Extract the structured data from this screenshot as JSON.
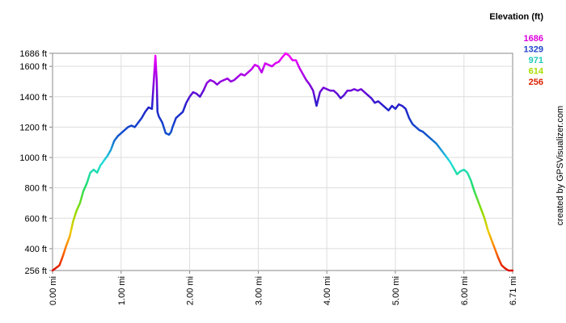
{
  "chart_data": {
    "type": "line",
    "title": "",
    "xlabel": "",
    "ylabel": "",
    "xlim": [
      0,
      6.71
    ],
    "ylim": [
      256,
      1686
    ],
    "grid": true,
    "x_ticks": [
      {
        "value": 0,
        "label": "0.00 mi"
      },
      {
        "value": 1,
        "label": "1.00 mi"
      },
      {
        "value": 2,
        "label": "2.00 mi"
      },
      {
        "value": 3,
        "label": "3.00 mi"
      },
      {
        "value": 4,
        "label": "4.00 mi"
      },
      {
        "value": 5,
        "label": "5.00 mi"
      },
      {
        "value": 6,
        "label": "6.00 mi"
      },
      {
        "value": 6.71,
        "label": "6.71 mi"
      }
    ],
    "y_ticks": [
      {
        "value": 256,
        "label": "256 ft"
      },
      {
        "value": 400,
        "label": "400 ft"
      },
      {
        "value": 600,
        "label": "600 ft"
      },
      {
        "value": 800,
        "label": "800 ft"
      },
      {
        "value": 1000,
        "label": "1000 ft"
      },
      {
        "value": 1200,
        "label": "1200 ft"
      },
      {
        "value": 1400,
        "label": "1400 ft"
      },
      {
        "value": 1600,
        "label": "1600 ft"
      },
      {
        "value": 1686,
        "label": "1686 ft"
      }
    ],
    "legend": {
      "title": "Elevation (ft)",
      "placement": "top-right",
      "entries": [
        {
          "label": "1686",
          "color": "#dd00dd"
        },
        {
          "label": "1329",
          "color": "#2244cc"
        },
        {
          "label": "971",
          "color": "#22ccbb"
        },
        {
          "label": "614",
          "color": "#aadd00"
        },
        {
          "label": "256",
          "color": "#dd2200"
        }
      ]
    },
    "credit": "created by GPSVisualizer.com",
    "series": [
      {
        "x": [
          0,
          0.1,
          0.15,
          0.2,
          0.25,
          0.3,
          0.35,
          0.4,
          0.45,
          0.5,
          0.55,
          0.6,
          0.65,
          0.7,
          0.72,
          0.75,
          0.8,
          0.85,
          0.9,
          0.95,
          1.0,
          1.05,
          1.1,
          1.15,
          1.2,
          1.25,
          1.3,
          1.35,
          1.4,
          1.45,
          1.5,
          1.52,
          1.53,
          1.55,
          1.6,
          1.65,
          1.7,
          1.73,
          1.75,
          1.8,
          1.85,
          1.9,
          1.95,
          2.0,
          2.05,
          2.1,
          2.15,
          2.2,
          2.25,
          2.3,
          2.35,
          2.4,
          2.45,
          2.5,
          2.55,
          2.6,
          2.65,
          2.7,
          2.75,
          2.8,
          2.85,
          2.9,
          2.95,
          3.0,
          3.05,
          3.1,
          3.15,
          3.2,
          3.25,
          3.3,
          3.35,
          3.4,
          3.45,
          3.5,
          3.55,
          3.6,
          3.65,
          3.7,
          3.75,
          3.8,
          3.85,
          3.9,
          3.95,
          4.0,
          4.05,
          4.1,
          4.15,
          4.2,
          4.25,
          4.3,
          4.35,
          4.4,
          4.45,
          4.5,
          4.55,
          4.6,
          4.65,
          4.7,
          4.75,
          4.8,
          4.85,
          4.9,
          4.95,
          5.0,
          5.05,
          5.1,
          5.15,
          5.2,
          5.25,
          5.3,
          5.35,
          5.4,
          5.45,
          5.5,
          5.55,
          5.6,
          5.65,
          5.7,
          5.75,
          5.8,
          5.85,
          5.9,
          5.95,
          6.0,
          6.05,
          6.1,
          6.15,
          6.2,
          6.25,
          6.3,
          6.35,
          6.4,
          6.45,
          6.5,
          6.55,
          6.6,
          6.65,
          6.71
        ],
        "y": [
          256,
          290,
          350,
          420,
          480,
          580,
          650,
          700,
          780,
          830,
          900,
          920,
          900,
          950,
          960,
          980,
          1010,
          1050,
          1110,
          1140,
          1160,
          1180,
          1200,
          1210,
          1200,
          1230,
          1260,
          1300,
          1330,
          1320,
          1670,
          1500,
          1300,
          1270,
          1230,
          1160,
          1150,
          1170,
          1200,
          1260,
          1280,
          1300,
          1360,
          1400,
          1430,
          1420,
          1400,
          1440,
          1490,
          1510,
          1500,
          1480,
          1500,
          1510,
          1520,
          1500,
          1510,
          1530,
          1550,
          1540,
          1560,
          1580,
          1610,
          1600,
          1560,
          1620,
          1610,
          1600,
          1620,
          1630,
          1660,
          1686,
          1670,
          1640,
          1640,
          1590,
          1550,
          1510,
          1480,
          1440,
          1340,
          1430,
          1460,
          1450,
          1440,
          1440,
          1420,
          1390,
          1410,
          1440,
          1440,
          1450,
          1440,
          1450,
          1430,
          1410,
          1390,
          1360,
          1370,
          1350,
          1330,
          1310,
          1340,
          1320,
          1350,
          1340,
          1320,
          1260,
          1220,
          1200,
          1180,
          1170,
          1150,
          1130,
          1110,
          1090,
          1060,
          1030,
          1000,
          970,
          930,
          890,
          910,
          920,
          900,
          850,
          780,
          720,
          660,
          600,
          520,
          460,
          400,
          340,
          290,
          270,
          256,
          256
        ]
      }
    ]
  }
}
